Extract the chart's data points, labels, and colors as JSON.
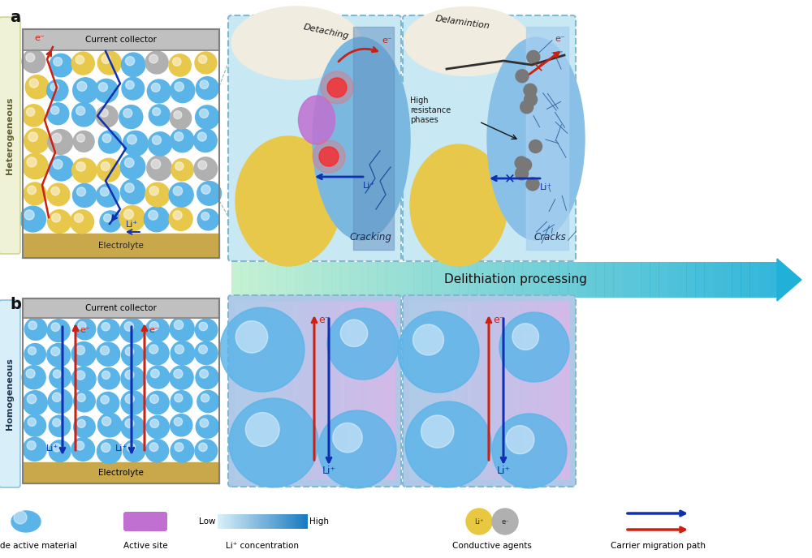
{
  "bg_color": "#ffffff",
  "title_a": "a",
  "title_b": "b",
  "label_heterogeneous": "Heterogeneous",
  "label_homogeneous": "Homogeneous",
  "label_delithiation": "Delithiation processing",
  "label_current_collector": "Current collector",
  "label_electrolyte": "Electrolyte",
  "label_detaching": "Detaching",
  "label_cracking": "Cracking",
  "label_delamination": "Delamintion",
  "label_cracks": "Cracks",
  "label_high_resistance": "High\nresistance\nphases",
  "legend_cathode": "Cathode active material",
  "legend_active_site": "Active site",
  "legend_li_conc": "Li⁺ concentration",
  "legend_conductive": "Conductive agents",
  "legend_carrier": "Carrier migration path",
  "legend_low": "Low",
  "legend_high": "High",
  "color_blue_sphere": "#5ab4e8",
  "color_blue_sphere_dark": "#2a84b8",
  "color_yellow_sphere": "#e8c84a",
  "color_yellow_sphere_dark": "#b89820",
  "color_gray_sphere": "#b0b0b0",
  "color_electrolyte": "#c8a84a",
  "color_collector": "#c0c0c0",
  "color_collector_dark": "#909090",
  "color_panel_bg_a": "#c8e8f4",
  "color_panel_bg_b_left": "#b8c8e8",
  "color_panel_bg_b_right": "#c0ccee",
  "color_red_arrow": "#cc2010",
  "color_blue_arrow": "#1030b0",
  "color_delithiation_start": "#c0f0d0",
  "color_delithiation_end": "#20b0d8",
  "side_label_a_bg": "#f0f2d8",
  "side_label_a_edge": "#c8d080",
  "side_label_a_text": "#606030",
  "side_label_b_bg": "#d8eef8",
  "side_label_b_edge": "#80b8d8",
  "side_label_b_text": "#203850"
}
